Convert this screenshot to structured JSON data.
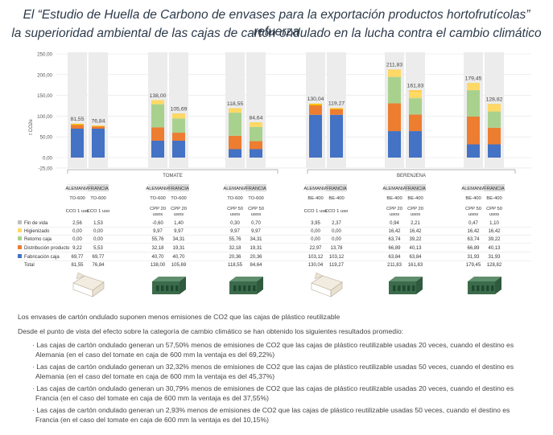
{
  "header": {
    "title_line1": "El “Estudio de Huella de Carbono de envases para la exportación productos hortofrutícolas” refuerza",
    "title_line2": "la superioridad ambiental de las cajas de cartón ondulado en la lucha contra el cambio climático"
  },
  "chart_data": {
    "type": "bar",
    "stacked": true,
    "ylabel": "t CO2e",
    "ylim": [
      -25,
      250
    ],
    "yticks": [
      "250,00",
      "200,00",
      "150,00",
      "100,00",
      "50,00",
      "0,00",
      "-25,00"
    ],
    "groups": [
      {
        "name": "TOMATE",
        "cases": [
          {
            "packs": [
              {
                "country": "ALEMANIA",
                "code": "TO-600",
                "usage": "CCO 1 uso",
                "values": [
                  "2,56",
                  "0,00",
                  "0,00",
                  "9,22",
                  "69,77"
                ],
                "total": "81,55"
              },
              {
                "country": "FRANCIA",
                "code": "TO-600",
                "usage": "CCO 1 uso",
                "values": [
                  "1,53",
                  "0,00",
                  "0,00",
                  "5,53",
                  "69,77"
                ],
                "total": "76,84"
              }
            ]
          },
          {
            "packs": [
              {
                "country": "ALEMANIA",
                "code": "TO-600",
                "usage": "CPP 20 usos",
                "values": [
                  "-0,60",
                  "9,97",
                  "55,76",
                  "32,18",
                  "40,70"
                ],
                "total": "138,00"
              },
              {
                "country": "FRANCIA",
                "code": "TO-600",
                "usage": "CPP 20 usos",
                "values": [
                  "1,40",
                  "9,97",
                  "34,31",
                  "19,31",
                  "40,70"
                ],
                "total": "105,69"
              }
            ]
          },
          {
            "packs": [
              {
                "country": "ALEMANIA",
                "code": "TO-600",
                "usage": "CPP 50 usos",
                "values": [
                  "0,30",
                  "9,97",
                  "55,76",
                  "32,18",
                  "20,36"
                ],
                "total": "118,55"
              },
              {
                "country": "FRANCIA",
                "code": "TO-600",
                "usage": "CPP 50 usos",
                "values": [
                  "0,70",
                  "9,97",
                  "34,31",
                  "19,31",
                  "20,36"
                ],
                "total": "84,64"
              }
            ]
          }
        ]
      },
      {
        "name": "BERENJENA",
        "cases": [
          {
            "packs": [
              {
                "country": "ALEMANIA",
                "code": "BE-400",
                "usage": "CCO 1 uso",
                "values": [
                  "3,95",
                  "0,00",
                  "0,00",
                  "22,97",
                  "103,12"
                ],
                "total": "130,04"
              },
              {
                "country": "FRANCIA",
                "code": "BE-400",
                "usage": "CCO 1 uso",
                "values": [
                  "2,37",
                  "0,00",
                  "0,00",
                  "13,78",
                  "103,12"
                ],
                "total": "119,27"
              }
            ]
          },
          {
            "packs": [
              {
                "country": "ALEMANIA",
                "code": "BE-400",
                "usage": "CPP 20 usos",
                "values": [
                  "0,94",
                  "16,42",
                  "63,74",
                  "66,89",
                  "63,84"
                ],
                "total": "211,83"
              },
              {
                "country": "FRANCIA",
                "code": "BE-400",
                "usage": "CPP 20 usos",
                "values": [
                  "2,21",
                  "16,42",
                  "39,22",
                  "40,13",
                  "63,84"
                ],
                "total": "161,83"
              }
            ]
          },
          {
            "packs": [
              {
                "country": "ALEMANIA",
                "code": "BE-400",
                "usage": "CPP 50 usos",
                "values": [
                  "0,47",
                  "16,42",
                  "63,74",
                  "66,89",
                  "31,93"
                ],
                "total": "179,45"
              },
              {
                "country": "FRANCIA",
                "code": "BE-400",
                "usage": "CPP 50 usos",
                "values": [
                  "1,10",
                  "16,42",
                  "39,22",
                  "40,13",
                  "31,93"
                ],
                "total": "128,82"
              }
            ]
          }
        ]
      }
    ],
    "categories": [
      "Fin de vida",
      "Higienizado",
      "Retorno caja",
      "Distribución producto",
      "Fabricación caja"
    ],
    "total_label": "Total",
    "colors": [
      "#ffc000",
      "#ffd966",
      "#a9d18e",
      "#ed7d31",
      "#4472c4"
    ],
    "legend_marker_colors": [
      "#bfbfbf",
      "#ffd966",
      "#a9d18e",
      "#ed7d31",
      "#4472c4"
    ],
    "package_images": [
      "carton-box",
      "plastic-crate",
      "plastic-crate",
      "carton-box",
      "plastic-crate",
      "plastic-crate"
    ]
  },
  "text": {
    "p1": "Los envases de cartón ondulado suponen menos emisiones de CO2 que las cajas de plástico reutilizable",
    "p2": "Desde el punto de vista del efecto sobre la categoría de cambio climático se han obtenido los siguientes resultados promedio:",
    "bullets": [
      [
        "· Las cajas de cartón ondulado generan un 57,50% menos de emisiones de CO2 que las cajas de plástico reutilizable usadas 20 veces, cuando el destino es",
        "Alemania (en el caso del tomate en caja de 600 mm la ventaja es del 69,22%)"
      ],
      [
        "· Las cajas de cartón ondulado generan un 32,32% menos de emisiones de CO2 que las cajas de plástico reutilizable usadas 50 veces, cuando el destino es",
        "Alemania (en el caso del tomate en caja de 600 mm la ventaja es del 45,37%)"
      ],
      [
        "· Las cajas de cartón ondulado generan un 30,79% menos de emisiones de CO2 que las cajas de plástico reutilizable usadas 20 veces, cuando el destino es",
        "Francia (en el caso del tomate en caja de 600 mm la ventaja es del 37,55%)"
      ],
      [
        "· Las cajas de cartón ondulado generan un 2,93% menos de emisiones de CO2 que las cajas de plástico reutilizable usadas 50 veces, cuando el destino es",
        "Francia (en el caso del tomate en caja de 600 mm la ventaja es del 10,15%)"
      ]
    ]
  }
}
